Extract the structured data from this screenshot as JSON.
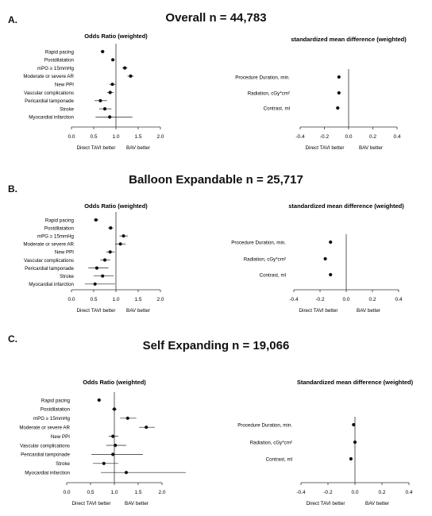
{
  "chart_data": [
    {
      "type": "forest",
      "panel_letter": "A.",
      "title": "Overall n = 44,783",
      "or_plot": {
        "title": "Odds Ratio (weighted)",
        "categories": [
          "Rapid pacing",
          "Postdilatation",
          "mPG ≥ 15mmHg",
          "Moderate or severe AR",
          "New PPI",
          "Vascular complications",
          "Pericardial tamponade",
          "Stroke",
          "Myocardial infarction"
        ],
        "values": [
          0.7,
          0.93,
          1.2,
          1.33,
          0.92,
          0.87,
          0.65,
          0.75,
          0.86
        ],
        "ci_low": [
          0.66,
          0.89,
          1.14,
          1.26,
          0.85,
          0.8,
          0.52,
          0.62,
          0.54
        ],
        "ci_high": [
          0.74,
          0.97,
          1.26,
          1.4,
          0.99,
          0.95,
          0.8,
          0.9,
          1.37
        ],
        "xlim": [
          0,
          2.0
        ],
        "xticks": [
          "0.0",
          "0.5",
          "1.0",
          "1.5",
          "2.0"
        ],
        "left_note": "Direct TAVI better",
        "right_note": "BAV better"
      },
      "smd_plot": {
        "title": "standardized mean difference (weighted)",
        "categories": [
          "Procedure Duration, min.",
          "Radiation, cGy*cm²",
          "Contrast, ml"
        ],
        "values": [
          -0.08,
          -0.08,
          -0.09
        ],
        "xlim": [
          -0.4,
          0.4
        ],
        "xticks": [
          "-0.4",
          "-0.2",
          "0.0",
          "0.2",
          "0.4"
        ],
        "left_note": "Direct TAVI better",
        "right_note": "BAV better"
      }
    },
    {
      "type": "forest",
      "panel_letter": "B.",
      "title": "Balloon Expandable n = 25,717",
      "or_plot": {
        "title": "Odds Ratio (weighted)",
        "categories": [
          "Rapid pacing",
          "Postdilatation",
          "mPG ≥ 15mmHg",
          "Moderate or severe AR",
          "New PPI",
          "Vascular complications",
          "Pericardial tamponade",
          "Stroke",
          "Myocardial infarction"
        ],
        "values": [
          0.55,
          0.88,
          1.17,
          1.1,
          0.87,
          0.75,
          0.57,
          0.7,
          0.53
        ],
        "ci_low": [
          0.5,
          0.82,
          1.08,
          0.98,
          0.78,
          0.65,
          0.38,
          0.5,
          0.3
        ],
        "ci_high": [
          0.61,
          0.94,
          1.27,
          1.22,
          0.97,
          0.87,
          0.83,
          0.95,
          0.98
        ],
        "xlim": [
          0,
          2.0
        ],
        "xticks": [
          "0.0",
          "0.5",
          "1.0",
          "1.5",
          "2.0"
        ],
        "left_note": "Direct TAVI better",
        "right_note": "BAV better"
      },
      "smd_plot": {
        "title": "standardized mean difference (weighted)",
        "categories": [
          "Procedure Duration, min.",
          "Radiation, cGy*cm²",
          "Contrast, ml"
        ],
        "values": [
          -0.12,
          -0.16,
          -0.12
        ],
        "xlim": [
          -0.4,
          0.4
        ],
        "xticks": [
          "-0.4",
          "-0.2",
          "0.0",
          "0.2",
          "0.4"
        ],
        "left_note": "Direct TAVI better",
        "right_note": "BAV better"
      }
    },
    {
      "type": "forest",
      "panel_letter": "C.",
      "title": "Self Expanding n = 19,066",
      "or_plot": {
        "title": "Odds Ratio (weighted)",
        "categories": [
          "Rapid pacing",
          "Postdilatation",
          "mPG ≥ 15mmHg",
          "Moderate or severe AR",
          "New  PPI",
          "Vascular complications",
          "Pericardial tamponade",
          "Stroke",
          "Myocardial infarction"
        ],
        "values": [
          0.68,
          1.0,
          1.28,
          1.67,
          0.97,
          1.02,
          0.97,
          0.78,
          1.25
        ],
        "ci_low": [
          0.64,
          0.95,
          1.12,
          1.52,
          0.88,
          0.83,
          0.52,
          0.55,
          0.72
        ],
        "ci_high": [
          0.72,
          1.05,
          1.46,
          1.85,
          1.08,
          1.25,
          1.6,
          1.08,
          2.5
        ],
        "xlim": [
          0,
          2.0
        ],
        "xticks": [
          "0.0",
          "0.5",
          "1.0",
          "1.5",
          "2.0"
        ],
        "left_note": "Direct TAVI better",
        "right_note": "BAV better"
      },
      "smd_plot": {
        "title": "Standardized mean difference (weighted)",
        "categories": [
          "Procedure Duration, min.",
          "Radiation, cGy*cm²",
          "Contrast, ml"
        ],
        "values": [
          -0.01,
          0.0,
          -0.03
        ],
        "xlim": [
          -0.4,
          0.4
        ],
        "xticks": [
          "-0.4",
          "-0.2",
          "0.0",
          "0.2",
          "0.4"
        ],
        "left_note": "Direct TAVI better",
        "right_note": "BAV better"
      }
    }
  ]
}
